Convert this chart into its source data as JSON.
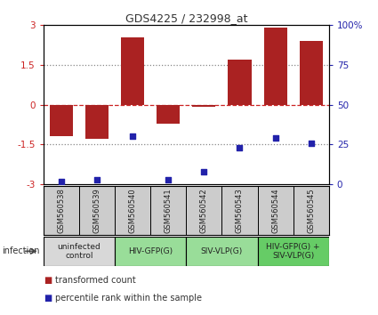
{
  "title": "GDS4225 / 232998_at",
  "samples": [
    "GSM560538",
    "GSM560539",
    "GSM560540",
    "GSM560541",
    "GSM560542",
    "GSM560543",
    "GSM560544",
    "GSM560545"
  ],
  "bar_values": [
    -1.2,
    -1.3,
    2.55,
    -0.7,
    -0.08,
    1.7,
    2.9,
    2.4
  ],
  "dot_values": [
    2,
    3,
    30,
    3,
    8,
    23,
    29,
    26
  ],
  "ylim": [
    -3,
    3
  ],
  "yticks_left": [
    -3,
    -1.5,
    0,
    1.5,
    3
  ],
  "yticks_right": [
    0,
    25,
    50,
    75,
    100
  ],
  "bar_color": "#aa2222",
  "dot_color": "#2222aa",
  "dotted_line_color": "#888888",
  "red_line_color": "#cc2222",
  "groups": [
    {
      "label": "uninfected\ncontrol",
      "start": 0,
      "end": 2,
      "color": "#d8d8d8"
    },
    {
      "label": "HIV-GFP(G)",
      "start": 2,
      "end": 4,
      "color": "#99dd99"
    },
    {
      "label": "SIV-VLP(G)",
      "start": 4,
      "end": 6,
      "color": "#99dd99"
    },
    {
      "label": "HIV-GFP(G) +\nSIV-VLP(G)",
      "start": 6,
      "end": 8,
      "color": "#66cc66"
    }
  ],
  "infection_label": "infection",
  "legend_items": [
    {
      "label": "transformed count",
      "color": "#aa2222"
    },
    {
      "label": "percentile rank within the sample",
      "color": "#2222aa"
    }
  ],
  "bg_color": "#ffffff",
  "sample_box_color": "#cccccc",
  "border_color": "#000000"
}
